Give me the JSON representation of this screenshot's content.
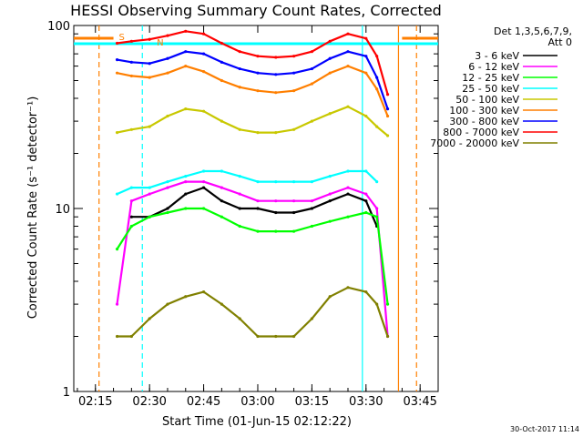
{
  "chart_data": {
    "type": "line",
    "title": "HESSI Observing Summary Count Rates, Corrected",
    "xlabel": "Start Time (01-Jun-15 02:12:22)",
    "ylabel": "Corrected Count Rate (s⁻¹ detector⁻¹)",
    "y_scale": "log",
    "xlim": [
      "02:09",
      "03:50"
    ],
    "ylim": [
      1,
      100
    ],
    "x_ticks": [
      "02:15",
      "02:30",
      "02:45",
      "03:00",
      "03:15",
      "03:30",
      "03:45"
    ],
    "y_ticks": [
      "1",
      "10",
      "100"
    ],
    "grid": false,
    "legend_position": "top-right",
    "legend_header": [
      "Det 1,3,5,6,7,9,",
      "Att 0"
    ],
    "flags": [
      "S",
      "N"
    ],
    "timestamp": "30-Oct-2017 11:14",
    "vertical_markers": [
      {
        "time": "02:16",
        "style": "dashed",
        "color": "#ff7f00"
      },
      {
        "time": "02:28",
        "style": "dashed",
        "color": "#00ffff"
      },
      {
        "time": "03:29",
        "style": "solid",
        "color": "#00ffff"
      },
      {
        "time": "03:39",
        "style": "solid",
        "color": "#ff7f00"
      },
      {
        "time": "03:44",
        "style": "dashed",
        "color": "#ff7f00"
      }
    ],
    "x": [
      "02:21",
      "02:25",
      "02:30",
      "02:35",
      "02:40",
      "02:45",
      "02:50",
      "02:55",
      "03:00",
      "03:05",
      "03:10",
      "03:15",
      "03:20",
      "03:25",
      "03:30",
      "03:33",
      "03:36"
    ],
    "series": [
      {
        "name": "3 - 6 keV",
        "color": "#000000",
        "values": [
          null,
          9,
          9,
          10,
          12,
          13,
          11,
          10,
          10,
          9.5,
          9.5,
          10,
          11,
          12,
          11,
          8,
          null
        ]
      },
      {
        "name": "6 - 12 keV",
        "color": "#ff00ff",
        "values": [
          3,
          11,
          12,
          13,
          14,
          14,
          13,
          12,
          11,
          11,
          11,
          11,
          12,
          13,
          12,
          10,
          2
        ]
      },
      {
        "name": "12 - 25 keV",
        "color": "#00ff00",
        "values": [
          6,
          8,
          9,
          9.5,
          10,
          10,
          9,
          8,
          7.5,
          7.5,
          7.5,
          8,
          8.5,
          9,
          9.5,
          9,
          3
        ]
      },
      {
        "name": "25 - 50 keV",
        "color": "#00ffff",
        "values": [
          12,
          13,
          13,
          14,
          15,
          16,
          16,
          15,
          14,
          14,
          14,
          14,
          15,
          16,
          16,
          14,
          null
        ]
      },
      {
        "name": "50 - 100 keV",
        "color": "#c8c800",
        "values": [
          26,
          27,
          28,
          32,
          35,
          34,
          30,
          27,
          26,
          26,
          27,
          30,
          33,
          36,
          32,
          28,
          25
        ]
      },
      {
        "name": "100 - 300 keV",
        "color": "#ff7f00",
        "values": [
          55,
          53,
          52,
          55,
          60,
          56,
          50,
          46,
          44,
          43,
          44,
          48,
          55,
          60,
          55,
          45,
          32
        ]
      },
      {
        "name": "300 - 800 keV",
        "color": "#0000ff",
        "values": [
          65,
          63,
          62,
          66,
          72,
          70,
          63,
          58,
          55,
          54,
          55,
          58,
          66,
          72,
          68,
          52,
          35
        ]
      },
      {
        "name": "800 - 7000 keV",
        "color": "#ff0000",
        "values": [
          80,
          82,
          84,
          88,
          93,
          90,
          80,
          72,
          68,
          67,
          68,
          72,
          82,
          90,
          85,
          68,
          42
        ]
      },
      {
        "name": "7000 - 20000 keV",
        "color": "#808000",
        "values": [
          2,
          2,
          2.5,
          3,
          3.3,
          3.5,
          3,
          2.5,
          2,
          2,
          2,
          2.5,
          3.3,
          3.7,
          3.5,
          3,
          2
        ]
      }
    ]
  }
}
